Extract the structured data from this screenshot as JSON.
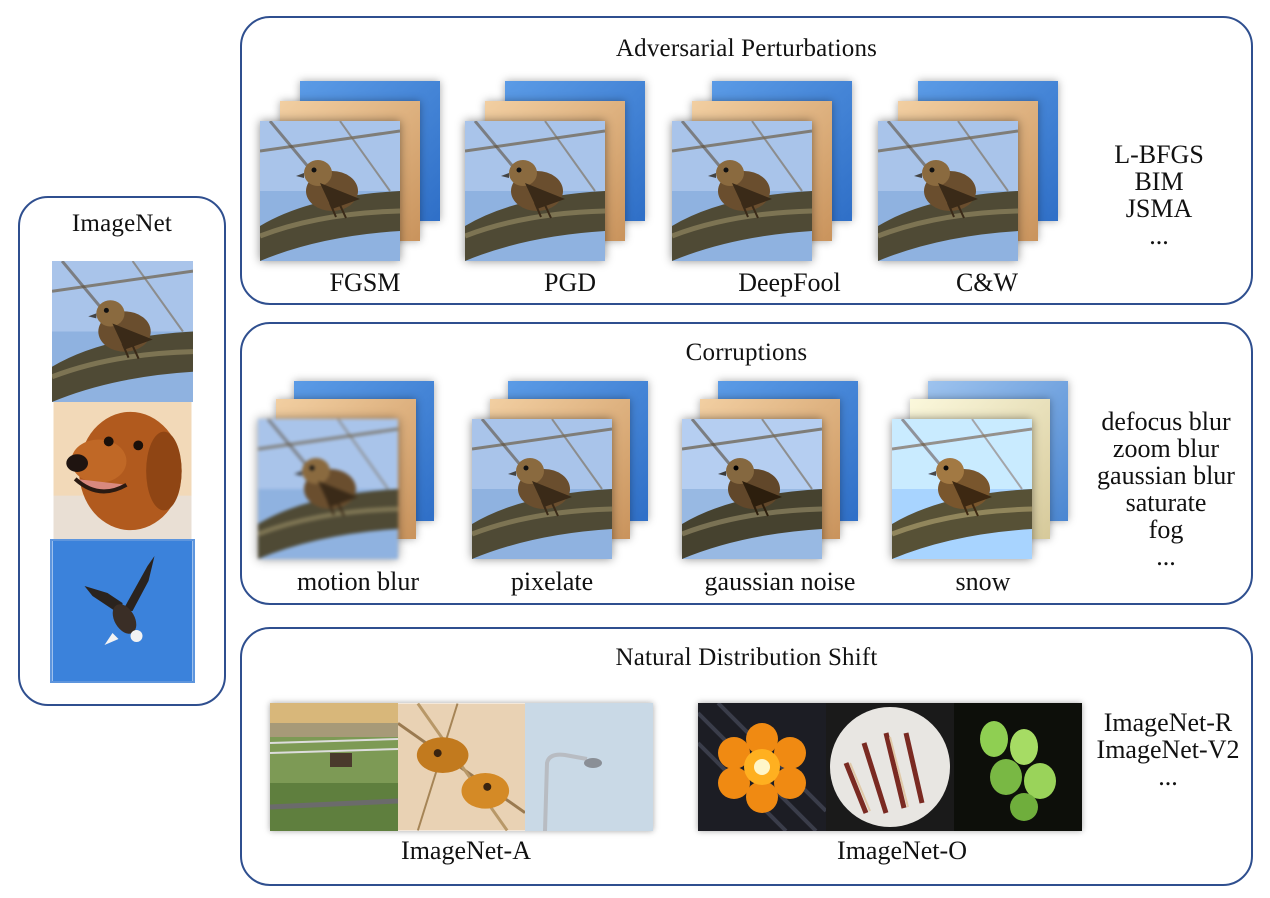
{
  "imagenet": {
    "title": "ImageNet"
  },
  "adversarial": {
    "title": "Adversarial Perturbations",
    "labels": [
      "FGSM",
      "PGD",
      "DeepFool",
      "C&W"
    ],
    "others": [
      "L-BFGS",
      "BIM",
      "JSMA",
      "..."
    ]
  },
  "corruptions": {
    "title": "Corruptions",
    "labels": [
      "motion blur",
      "pixelate",
      "gaussian noise",
      "snow"
    ],
    "others": [
      "defocus blur",
      "zoom blur",
      "gaussian blur",
      "saturate",
      "fog",
      "..."
    ]
  },
  "natural": {
    "title": "Natural Distribution Shift",
    "labels": [
      "ImageNet-A",
      "ImageNet-O"
    ],
    "others": [
      "ImageNet-R",
      "ImageNet-V2",
      "..."
    ]
  },
  "colors": {
    "panel_border": "#2f4f8f",
    "blue_layer": "#3f7fd6",
    "tan_layer": "#e0b07a"
  }
}
